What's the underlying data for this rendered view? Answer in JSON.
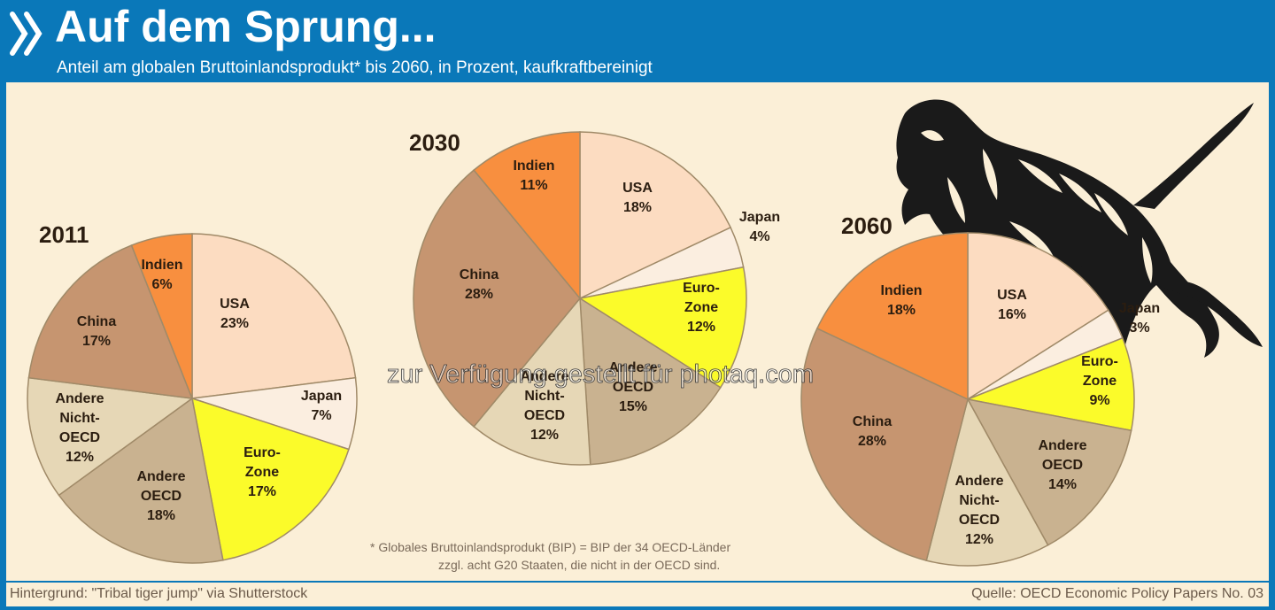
{
  "header": {
    "title": "Auf dem Sprung...",
    "subtitle": "Anteil am globalen Bruttoinlandsprodukt* bis 2060, in Prozent, kaufkraftbereinigt"
  },
  "footer": {
    "left": "Hintergrund: \"Tribal tiger jump\" via Shutterstock",
    "right": "Quelle: OECD Economic Policy Papers No. 03"
  },
  "footnote": {
    "line1": "* Globales Bruttoinlandsprodukt (BIP) = BIP der 34 OECD-Länder",
    "line2": "zzgl. acht G20 Staaten, die nicht in der OECD sind."
  },
  "watermark": "zur Verfügung gestellt für photaq.com",
  "icons": {
    "logo": "double-chevron-logo-icon",
    "tiger": "tribal-tiger-illustration"
  },
  "colors": {
    "header_bg": "#0a78b9",
    "panel_bg": "#fbefd7",
    "USA": "#fcdcc1",
    "Japan": "#fbeee0",
    "Euro-Zone": "#fbfb2a",
    "Andere OECD": "#c9b290",
    "Andere Nicht-OECD": "#e6d7b6",
    "China": "#c69570",
    "Indien": "#f88f3f",
    "slice_border": "#a08a68"
  },
  "chart_data": [
    {
      "type": "pie",
      "title": "2011",
      "categories": [
        "USA",
        "Japan",
        "Euro-Zone",
        "Andere OECD",
        "Andere Nicht-OECD",
        "China",
        "Indien"
      ],
      "values": [
        23,
        7,
        17,
        18,
        12,
        17,
        6
      ],
      "labels": [
        [
          "USA",
          "23%"
        ],
        [
          "Japan",
          "7%"
        ],
        [
          "Euro-",
          "Zone",
          "17%"
        ],
        [
          "Andere",
          "OECD",
          "18%"
        ],
        [
          "Andere",
          "Nicht-",
          "OECD",
          "12%"
        ],
        [
          "China",
          "17%"
        ],
        [
          "Indien",
          "6%"
        ]
      ]
    },
    {
      "type": "pie",
      "title": "2030",
      "categories": [
        "USA",
        "Japan",
        "Euro-Zone",
        "Andere OECD",
        "Andere Nicht-OECD",
        "China",
        "Indien"
      ],
      "values": [
        18,
        4,
        12,
        15,
        12,
        28,
        11
      ],
      "labels": [
        [
          "USA",
          "18%"
        ],
        [
          "Japan",
          "4%"
        ],
        [
          "Euro-",
          "Zone",
          "12%"
        ],
        [
          "Andere",
          "OECD",
          "15%"
        ],
        [
          "Andere",
          "Nicht-",
          "OECD",
          "12%"
        ],
        [
          "China",
          "28%"
        ],
        [
          "Indien",
          "11%"
        ]
      ]
    },
    {
      "type": "pie",
      "title": "2060",
      "categories": [
        "USA",
        "Japan",
        "Euro-Zone",
        "Andere OECD",
        "Andere Nicht-OECD",
        "China",
        "Indien"
      ],
      "values": [
        16,
        3,
        9,
        14,
        12,
        28,
        18
      ],
      "labels": [
        [
          "USA",
          "16%"
        ],
        [
          "Japan",
          "3%"
        ],
        [
          "Euro-",
          "Zone",
          "9%"
        ],
        [
          "Andere",
          "OECD",
          "14%"
        ],
        [
          "Andere",
          "Nicht-",
          "OECD",
          "12%"
        ],
        [
          "China",
          "28%"
        ],
        [
          "Indien",
          "18%"
        ]
      ]
    }
  ]
}
